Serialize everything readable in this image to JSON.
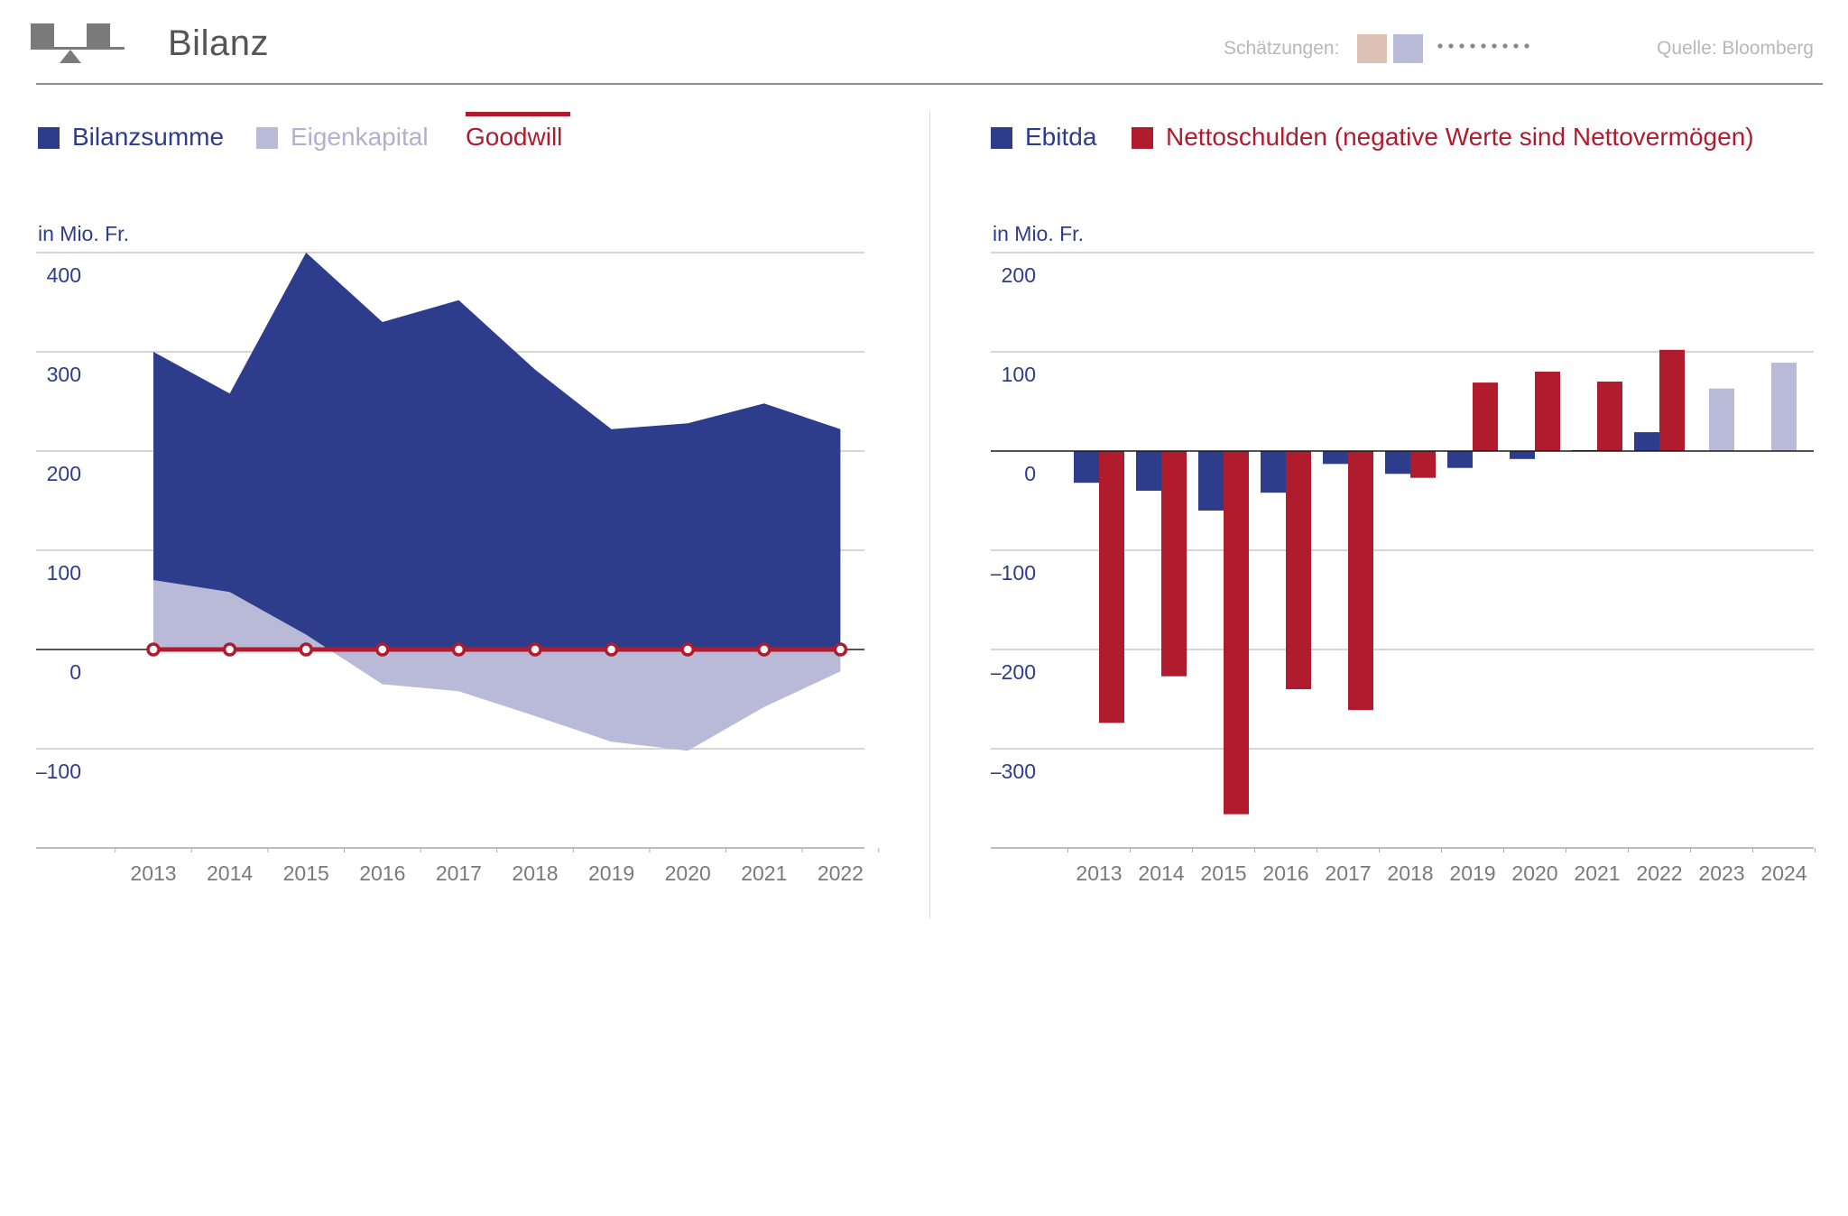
{
  "header": {
    "title": "Bilanz",
    "estimates_label": "Schätzungen:",
    "source": "Quelle: Bloomberg"
  },
  "colors": {
    "navy": "#2e3c8c",
    "lavender": "#b9b9d8",
    "red": "#b01c2e",
    "estimate_tan": "#dcc0b3"
  },
  "icons": {
    "logo": "balance-scale-icon",
    "estimate_dots": "dotted-line-icon"
  },
  "left_legend": {
    "bilanzsumme": "Bilanzsumme",
    "eigenkapital": "Eigenkapital",
    "goodwill": "Goodwill"
  },
  "right_legend": {
    "ebitda": "Ebitda",
    "nettoschulden": "Nettoschulden (negative Werte sind Nettovermögen)"
  },
  "chart_data": [
    {
      "type": "area",
      "title": "Bilanz",
      "ylabel": "in Mio. Fr.",
      "xlabel": "",
      "ylim": [
        -200,
        400
      ],
      "yticks": [
        400,
        300,
        200,
        100,
        0,
        -100
      ],
      "ytick_labels": [
        "400",
        "300",
        "200",
        "100",
        "0",
        "–100"
      ],
      "x": [
        "2013",
        "2014",
        "2015",
        "2016",
        "2017",
        "2018",
        "2019",
        "2020",
        "2021",
        "2022"
      ],
      "series": [
        {
          "name": "Bilanzsumme",
          "color": "#2e3c8c",
          "values": [
            300,
            258,
            400,
            330,
            352,
            282,
            222,
            228,
            248,
            222
          ]
        },
        {
          "name": "Eigenkapital",
          "color": "#b9b9d8",
          "values": [
            70,
            58,
            15,
            -35,
            -42,
            -67,
            -93,
            -102,
            -58,
            -22
          ]
        },
        {
          "name": "Goodwill",
          "color": "#b01c2e",
          "values": [
            0,
            0,
            0,
            0,
            0,
            0,
            0,
            0,
            0,
            0
          ]
        }
      ],
      "grid": true
    },
    {
      "type": "bar",
      "ylabel": "in Mio. Fr.",
      "xlabel": "",
      "ylim": [
        -400,
        200
      ],
      "yticks": [
        200,
        100,
        0,
        -100,
        -200,
        -300
      ],
      "ytick_labels": [
        "200",
        "100",
        "0",
        "–100",
        "–200",
        "–300"
      ],
      "categories": [
        "2013",
        "2014",
        "2015",
        "2016",
        "2017",
        "2018",
        "2019",
        "2020",
        "2021",
        "2022",
        "2023",
        "2024"
      ],
      "estimate_categories": [
        "2023",
        "2024"
      ],
      "series": [
        {
          "name": "Ebitda",
          "color": "#2e3c8c",
          "estimate_color": "#b9b9d8",
          "values": [
            -32,
            -40,
            -60,
            -42,
            -13,
            -23,
            -17,
            -8,
            1,
            19,
            63,
            89
          ]
        },
        {
          "name": "Nettoschulden (negative Werte sind Nettovermögen)",
          "color": "#b01c2e",
          "estimate_color": "#dcc0b3",
          "values": [
            -274,
            -227,
            -366,
            -240,
            -261,
            -27,
            69,
            80,
            70,
            102,
            null,
            null
          ]
        }
      ],
      "grid": true
    }
  ]
}
